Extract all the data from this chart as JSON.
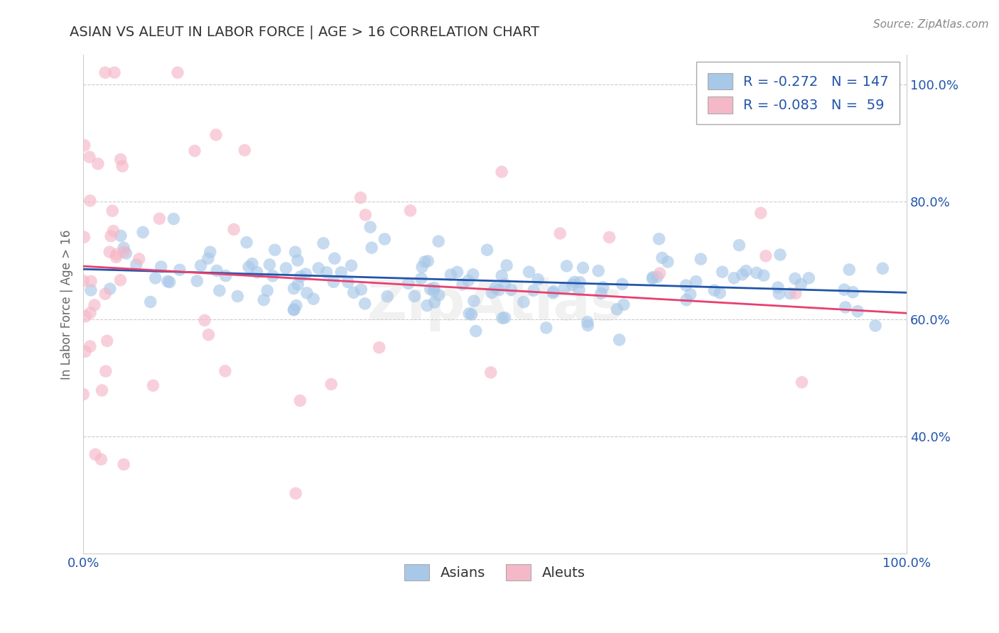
{
  "title": "ASIAN VS ALEUT IN LABOR FORCE | AGE > 16 CORRELATION CHART",
  "ylabel": "In Labor Force | Age > 16",
  "source_text": "Source: ZipAtlas.com",
  "xlim": [
    0.0,
    1.0
  ],
  "ylim": [
    0.2,
    1.05
  ],
  "x_ticks": [
    0.0,
    1.0
  ],
  "x_tick_labels": [
    "0.0%",
    "100.0%"
  ],
  "y_ticks": [
    0.4,
    0.6,
    0.8,
    1.0
  ],
  "y_tick_labels": [
    "40.0%",
    "60.0%",
    "80.0%",
    "100.0%"
  ],
  "asian_R": -0.272,
  "asian_N": 147,
  "aleut_R": -0.083,
  "aleut_N": 59,
  "asian_color": "#a8c8e8",
  "aleut_color": "#f5b8c8",
  "asian_line_color": "#2255aa",
  "aleut_line_color": "#e84070",
  "title_color": "#333333",
  "legend_text_color": "#2255aa",
  "axis_label_color": "#666666",
  "tick_color": "#2255aa",
  "grid_color": "#cccccc",
  "background_color": "#ffffff",
  "watermark": "ZipAtlas",
  "asian_seed": 42,
  "aleut_seed": 7,
  "asian_intercept": 0.685,
  "asian_slope": -0.04,
  "aleut_intercept": 0.69,
  "aleut_slope": -0.08
}
